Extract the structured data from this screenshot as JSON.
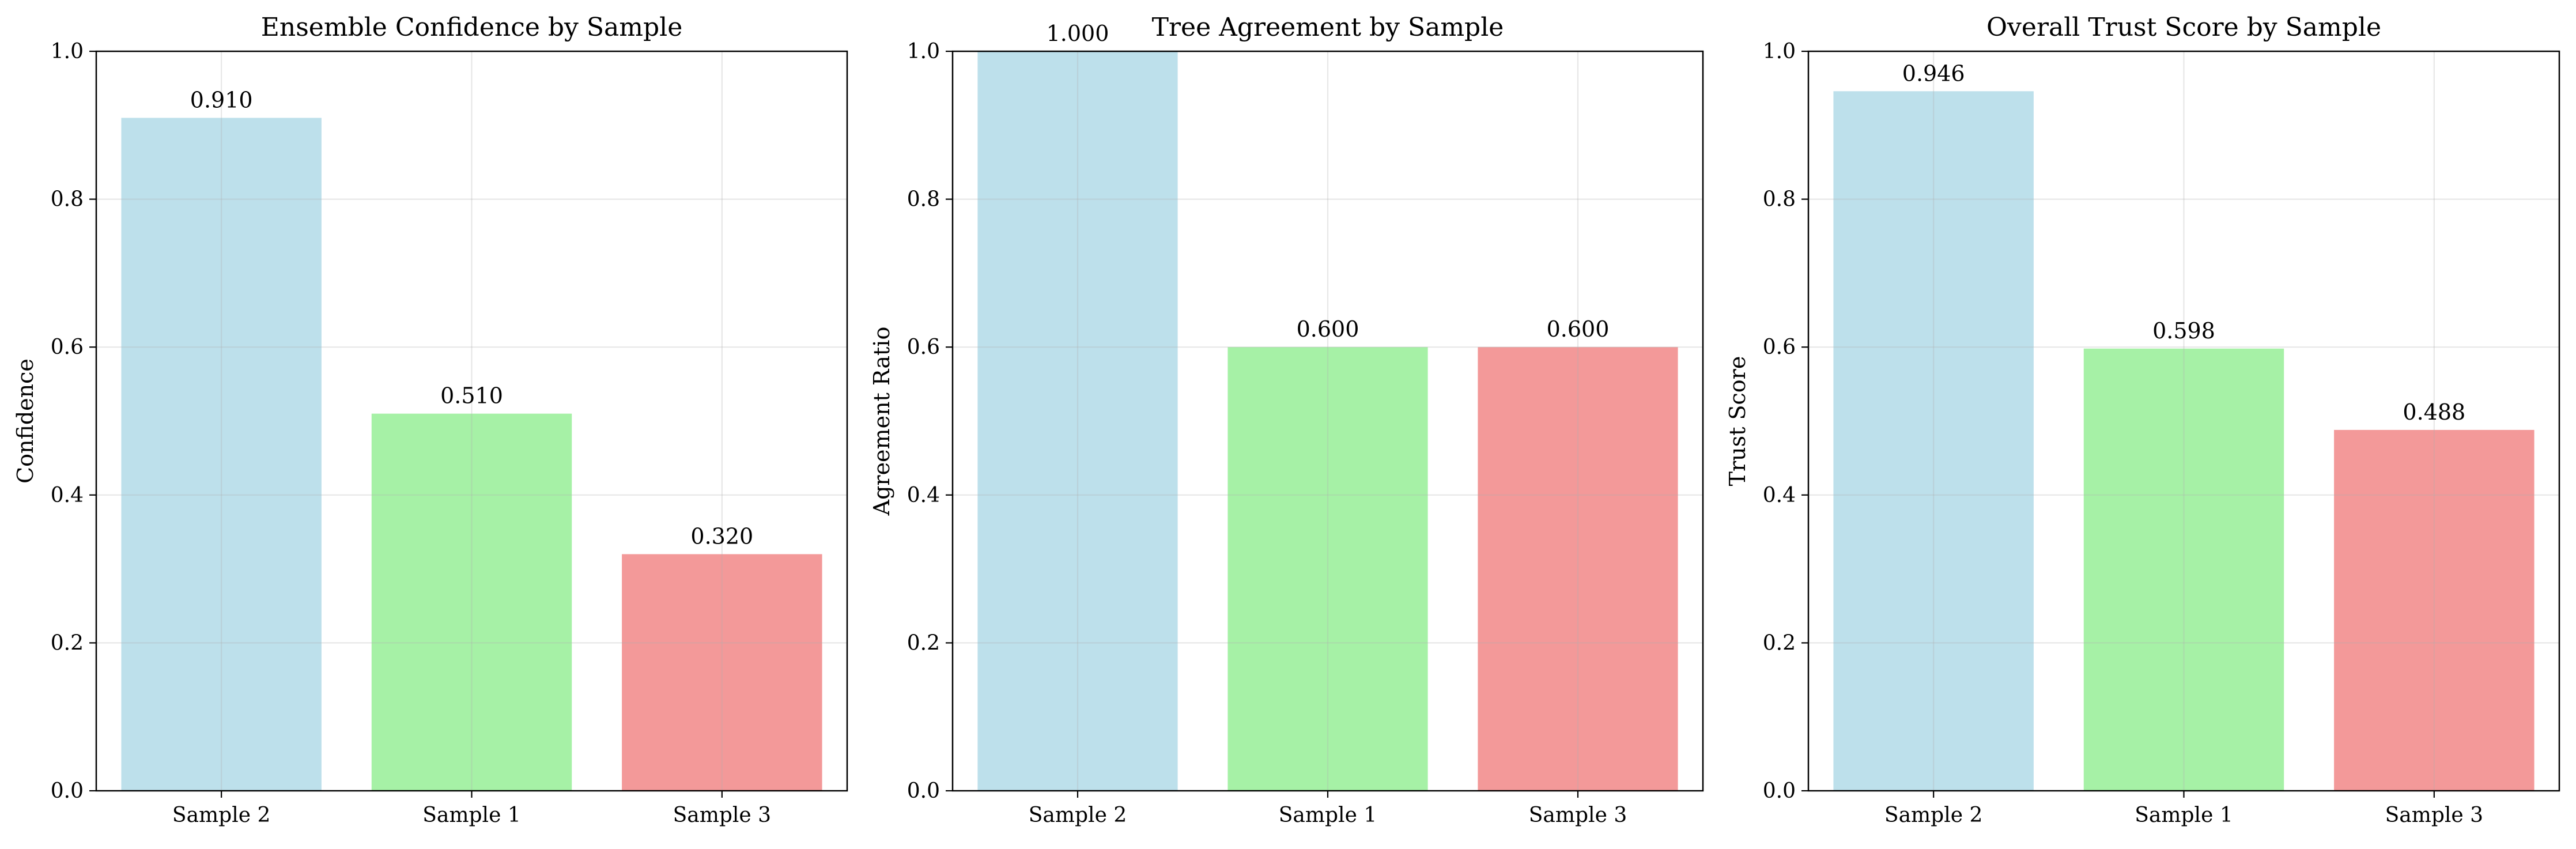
{
  "chart_data": [
    {
      "type": "bar",
      "title": "Ensemble Confidence by Sample",
      "xlabel": "",
      "ylabel": "Confidence",
      "categories": [
        "Sample 2",
        "Sample 1",
        "Sample 3"
      ],
      "values": [
        0.91,
        0.51,
        0.32
      ],
      "value_labels": [
        "0.910",
        "0.510",
        "0.320"
      ],
      "colors": [
        "#add8e6",
        "#90ee90",
        "#f08080"
      ],
      "ylim": [
        0,
        1.0
      ],
      "yticks": [
        0.0,
        0.2,
        0.4,
        0.6,
        0.8,
        1.0
      ],
      "ytick_labels": [
        "0.0",
        "0.2",
        "0.4",
        "0.6",
        "0.8",
        "1.0"
      ],
      "grid": true
    },
    {
      "type": "bar",
      "title": "Tree Agreement by Sample",
      "xlabel": "",
      "ylabel": "Agreement Ratio",
      "categories": [
        "Sample 2",
        "Sample 1",
        "Sample 3"
      ],
      "values": [
        1.0,
        0.6,
        0.6
      ],
      "value_labels": [
        "1.000",
        "0.600",
        "0.600"
      ],
      "colors": [
        "#add8e6",
        "#90ee90",
        "#f08080"
      ],
      "ylim": [
        0,
        1.0
      ],
      "yticks": [
        0.0,
        0.2,
        0.4,
        0.6,
        0.8,
        1.0
      ],
      "ytick_labels": [
        "0.0",
        "0.2",
        "0.4",
        "0.6",
        "0.8",
        "1.0"
      ],
      "grid": true
    },
    {
      "type": "bar",
      "title": "Overall Trust Score by Sample",
      "xlabel": "",
      "ylabel": "Trust Score",
      "categories": [
        "Sample 2",
        "Sample 1",
        "Sample 3"
      ],
      "values": [
        0.946,
        0.598,
        0.488
      ],
      "value_labels": [
        "0.946",
        "0.598",
        "0.488"
      ],
      "colors": [
        "#add8e6",
        "#90ee90",
        "#f08080"
      ],
      "ylim": [
        0,
        1.0
      ],
      "yticks": [
        0.0,
        0.2,
        0.4,
        0.6,
        0.8,
        1.0
      ],
      "ytick_labels": [
        "0.0",
        "0.2",
        "0.4",
        "0.6",
        "0.8",
        "1.0"
      ],
      "grid": true
    }
  ]
}
